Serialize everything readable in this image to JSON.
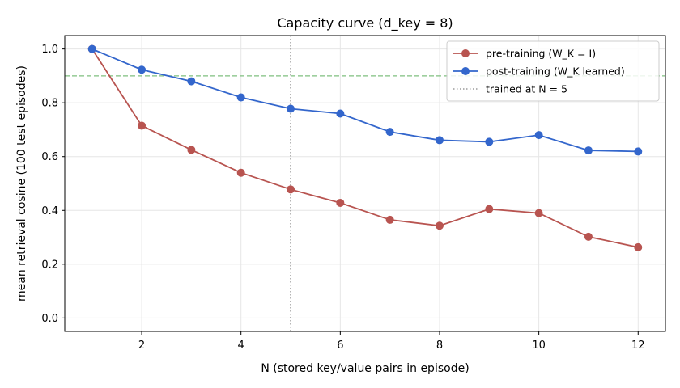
{
  "chart_data": {
    "type": "line",
    "title": "Capacity curve (d_key = 8)",
    "xlabel": "N (stored key/value pairs in episode)",
    "ylabel": "mean retrieval cosine (100 test episodes)",
    "xlim": [
      0.45,
      12.55
    ],
    "ylim": [
      -0.05,
      1.05
    ],
    "xticks": [
      2,
      4,
      6,
      8,
      10,
      12
    ],
    "yticks": [
      0.0,
      0.2,
      0.4,
      0.6,
      0.8,
      1.0
    ],
    "grid": true,
    "legend_position": "top-right",
    "x": [
      1,
      2,
      3,
      4,
      5,
      6,
      7,
      8,
      9,
      10,
      11,
      12
    ],
    "series": [
      {
        "name": "pre-training (W_K = I)",
        "color": "#b85450",
        "values": [
          1.0,
          0.715,
          0.625,
          0.54,
          0.478,
          0.428,
          0.365,
          0.343,
          0.405,
          0.39,
          0.302,
          0.263
        ]
      },
      {
        "name": "post-training (W_K learned)",
        "color": "#3366cc",
        "values": [
          1.0,
          0.923,
          0.88,
          0.82,
          0.778,
          0.76,
          0.692,
          0.661,
          0.655,
          0.68,
          0.623,
          0.619
        ]
      }
    ],
    "reference_lines": [
      {
        "orientation": "vertical",
        "x": 5,
        "name": "trained at N = 5",
        "color": "#888888",
        "style": "dotted"
      },
      {
        "orientation": "horizontal",
        "y": 0.9,
        "color": "#7fbf7f",
        "style": "dashed"
      }
    ]
  }
}
